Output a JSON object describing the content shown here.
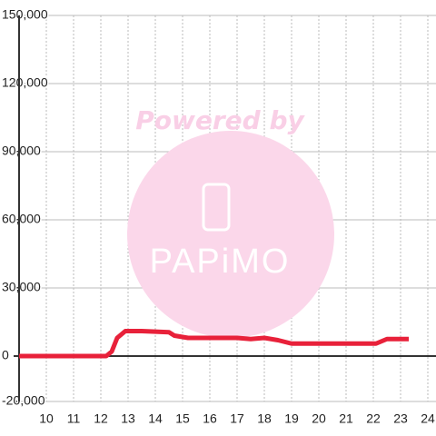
{
  "chart_data": {
    "type": "line",
    "watermark": {
      "line1": "Powered by",
      "line2": "PAPiMO"
    },
    "xlim": [
      9,
      24.3
    ],
    "xticks": [
      10,
      11,
      12,
      13,
      14,
      15,
      16,
      17,
      18,
      19,
      20,
      21,
      22,
      23,
      24
    ],
    "ylim": [
      -20000,
      150000
    ],
    "yticks": [
      {
        "value": -20000,
        "label": "-20,000"
      },
      0,
      {
        "value": 30000,
        "label": "30,000"
      },
      {
        "value": 60000,
        "label": "60,000"
      },
      {
        "value": 90000,
        "label": "90,000"
      },
      {
        "value": 120000,
        "label": "120,000"
      },
      {
        "value": 150000,
        "label": "150,000"
      }
    ],
    "grid": true,
    "x": [
      9,
      12.2,
      12.4,
      12.6,
      12.9,
      13.5,
      14.5,
      14.7,
      15.2,
      17,
      17.5,
      18,
      18.5,
      19,
      22.1,
      22.5,
      23.3
    ],
    "series": [
      {
        "color": "#e8213a",
        "values": [
          0,
          0,
          2000,
          8000,
          11000,
          11000,
          10500,
          9000,
          8000,
          8000,
          7500,
          8000,
          7000,
          5500,
          5500,
          7500,
          7500
        ]
      }
    ]
  }
}
